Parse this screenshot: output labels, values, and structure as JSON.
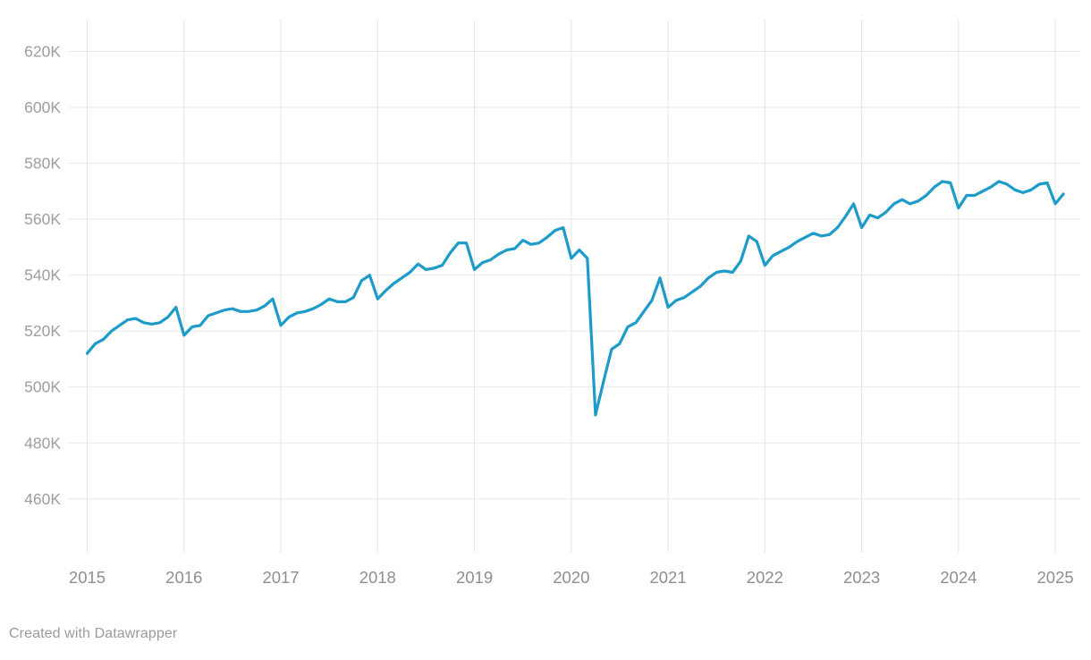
{
  "caption": {
    "text": "Created with Datawrapper"
  },
  "colors": {
    "line": "#1d9bc9",
    "grid_horizontal": "#e8e8e8",
    "grid_vertical": "#e4e4e4",
    "y_label": "#9e9e9e",
    "x_label": "#8f8f8f",
    "caption": "#9b9b9b",
    "background": "#ffffff"
  },
  "chart_data": {
    "type": "line",
    "title": "",
    "xlabel": "",
    "ylabel": "",
    "unit": "thousands (K)",
    "frequency": "monthly",
    "x_start": "2015-01",
    "x_end": "2025-02",
    "legend": "none",
    "grid": true,
    "y_axis": {
      "tick_labels": [
        "620K",
        "600K",
        "580K",
        "560K",
        "540K",
        "520K",
        "500K",
        "480K",
        "460K"
      ],
      "tick_values": [
        620,
        600,
        580,
        560,
        540,
        520,
        500,
        480,
        460
      ],
      "range_k": [
        450,
        638
      ]
    },
    "x_axis": {
      "tick_labels": [
        "2015",
        "2016",
        "2017",
        "2018",
        "2019",
        "2020",
        "2021",
        "2022",
        "2023",
        "2024",
        "2025"
      ],
      "tick_values": [
        2015,
        2016,
        2017,
        2018,
        2019,
        2020,
        2021,
        2022,
        2023,
        2024,
        2025
      ]
    },
    "months": [
      "2015-01",
      "2015-02",
      "2015-03",
      "2015-04",
      "2015-05",
      "2015-06",
      "2015-07",
      "2015-08",
      "2015-09",
      "2015-10",
      "2015-11",
      "2015-12",
      "2016-01",
      "2016-02",
      "2016-03",
      "2016-04",
      "2016-05",
      "2016-06",
      "2016-07",
      "2016-08",
      "2016-09",
      "2016-10",
      "2016-11",
      "2016-12",
      "2017-01",
      "2017-02",
      "2017-03",
      "2017-04",
      "2017-05",
      "2017-06",
      "2017-07",
      "2017-08",
      "2017-09",
      "2017-10",
      "2017-11",
      "2017-12",
      "2018-01",
      "2018-02",
      "2018-03",
      "2018-04",
      "2018-05",
      "2018-06",
      "2018-07",
      "2018-08",
      "2018-09",
      "2018-10",
      "2018-11",
      "2018-12",
      "2019-01",
      "2019-02",
      "2019-03",
      "2019-04",
      "2019-05",
      "2019-06",
      "2019-07",
      "2019-08",
      "2019-09",
      "2019-10",
      "2019-11",
      "2019-12",
      "2020-01",
      "2020-02",
      "2020-03",
      "2020-04",
      "2020-05",
      "2020-06",
      "2020-07",
      "2020-08",
      "2020-09",
      "2020-10",
      "2020-11",
      "2020-12",
      "2021-01",
      "2021-02",
      "2021-03",
      "2021-04",
      "2021-05",
      "2021-06",
      "2021-07",
      "2021-08",
      "2021-09",
      "2021-10",
      "2021-11",
      "2021-12",
      "2022-01",
      "2022-02",
      "2022-03",
      "2022-04",
      "2022-05",
      "2022-06",
      "2022-07",
      "2022-08",
      "2022-09",
      "2022-10",
      "2022-11",
      "2022-12",
      "2023-01",
      "2023-02",
      "2023-03",
      "2023-04",
      "2023-05",
      "2023-06",
      "2023-07",
      "2023-08",
      "2023-09",
      "2023-10",
      "2023-11",
      "2023-12",
      "2024-01",
      "2024-02",
      "2024-03",
      "2024-04",
      "2024-05",
      "2024-06",
      "2024-07",
      "2024-08",
      "2024-09",
      "2024-10",
      "2024-11",
      "2024-12",
      "2025-01",
      "2025-02"
    ],
    "values_k": [
      512,
      515.5,
      517,
      520,
      522,
      524,
      524.5,
      523,
      522.5,
      523,
      525,
      528.5,
      518.5,
      521.5,
      522,
      525.5,
      526.5,
      527.5,
      528,
      527,
      527,
      527.5,
      529,
      531.5,
      522,
      525,
      526.5,
      527,
      528,
      529.5,
      531.5,
      530.5,
      530.5,
      532,
      538,
      540,
      531.5,
      534.5,
      537,
      539,
      541,
      544,
      542,
      542.5,
      543.5,
      548,
      551.5,
      551.5,
      542,
      544.5,
      545.5,
      547.5,
      549,
      549.5,
      552.5,
      551,
      551.5,
      553.5,
      556,
      557,
      546,
      549,
      546,
      490,
      502,
      513.5,
      515.5,
      521.5,
      523,
      527,
      531,
      539,
      528.5,
      531,
      532,
      534,
      536,
      539,
      541,
      541.5,
      541,
      545,
      554,
      552,
      543.5,
      547,
      548.5,
      550,
      552,
      553.5,
      555,
      554,
      554.5,
      557,
      561,
      565.5,
      557,
      561.5,
      560.5,
      562.5,
      565.5,
      567,
      565.5,
      566.5,
      568.5,
      571.5,
      573.5,
      573,
      564,
      568.5,
      568.5,
      570,
      571.5,
      573.5,
      572.5,
      570.5,
      569.5,
      570.5,
      572.5,
      573,
      565.5,
      569
    ]
  }
}
